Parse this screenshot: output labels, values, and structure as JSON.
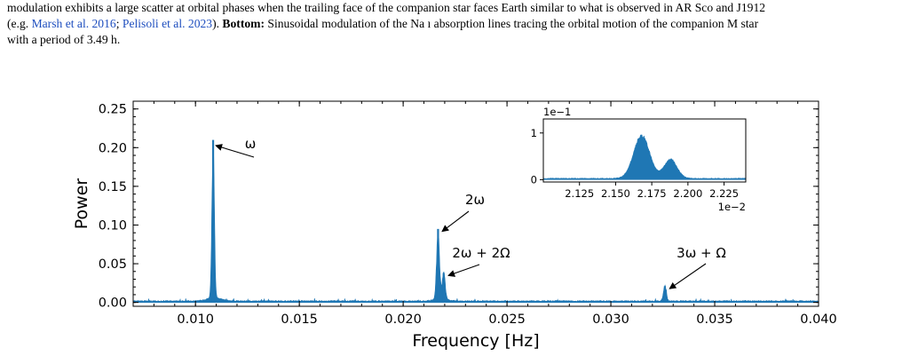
{
  "caption": {
    "line1": "modulation exhibits a large scatter at orbital phases when the trailing face of the companion star faces Earth similar to what is observed in AR Sco and J1912",
    "line2_pre": "(e.g. ",
    "cite1": "Marsh et al. 2016",
    "sep": "; ",
    "cite2": "Pelisoli et al. 2023",
    "line2_post": ").  ",
    "bottom_label": "Bottom:",
    "line2_rest": " Sinusoidal modulation of the Na ı absorption lines tracing the orbital motion of the companion M star",
    "line3": "with a period of 3.49 h."
  },
  "chart_data": {
    "type": "line",
    "style": "filled-spectrum",
    "color": "#1f77b4",
    "xlabel": "Frequency [Hz]",
    "ylabel": "Power",
    "xlim": [
      0.007,
      0.04
    ],
    "ylim": [
      -0.005,
      0.26
    ],
    "xticks": [
      "0.010",
      "0.015",
      "0.020",
      "0.025",
      "0.030",
      "0.035",
      "0.040"
    ],
    "yticks": [
      "0.00",
      "0.05",
      "0.10",
      "0.15",
      "0.20",
      "0.25"
    ],
    "peaks": [
      {
        "x": 0.01085,
        "y": 0.21
      },
      {
        "x": 0.02168,
        "y": 0.095
      },
      {
        "x": 0.02195,
        "y": 0.038
      },
      {
        "x": 0.0326,
        "y": 0.021
      }
    ],
    "annotations": [
      {
        "text": "ω",
        "x": 0.01085,
        "y": 0.205
      },
      {
        "text": "2ω",
        "x": 0.02175,
        "y": 0.094
      },
      {
        "text": "2ω + 2Ω",
        "x": 0.02205,
        "y": 0.037
      },
      {
        "text": "3ω + Ω",
        "x": 0.0327,
        "y": 0.02
      }
    ],
    "inset": {
      "xlim": [
        2.1,
        2.24
      ],
      "ylim": [
        -0.05,
        1.3
      ],
      "xticks": [
        "2.125",
        "2.150",
        "2.175",
        "2.200",
        "2.225"
      ],
      "yticks": [
        "0",
        "1"
      ],
      "x_offset_label": "1e−2",
      "y_offset_label": "1e−1",
      "peaks": [
        {
          "x": 2.168,
          "y": 0.95
        },
        {
          "x": 2.188,
          "y": 0.42
        }
      ]
    }
  }
}
